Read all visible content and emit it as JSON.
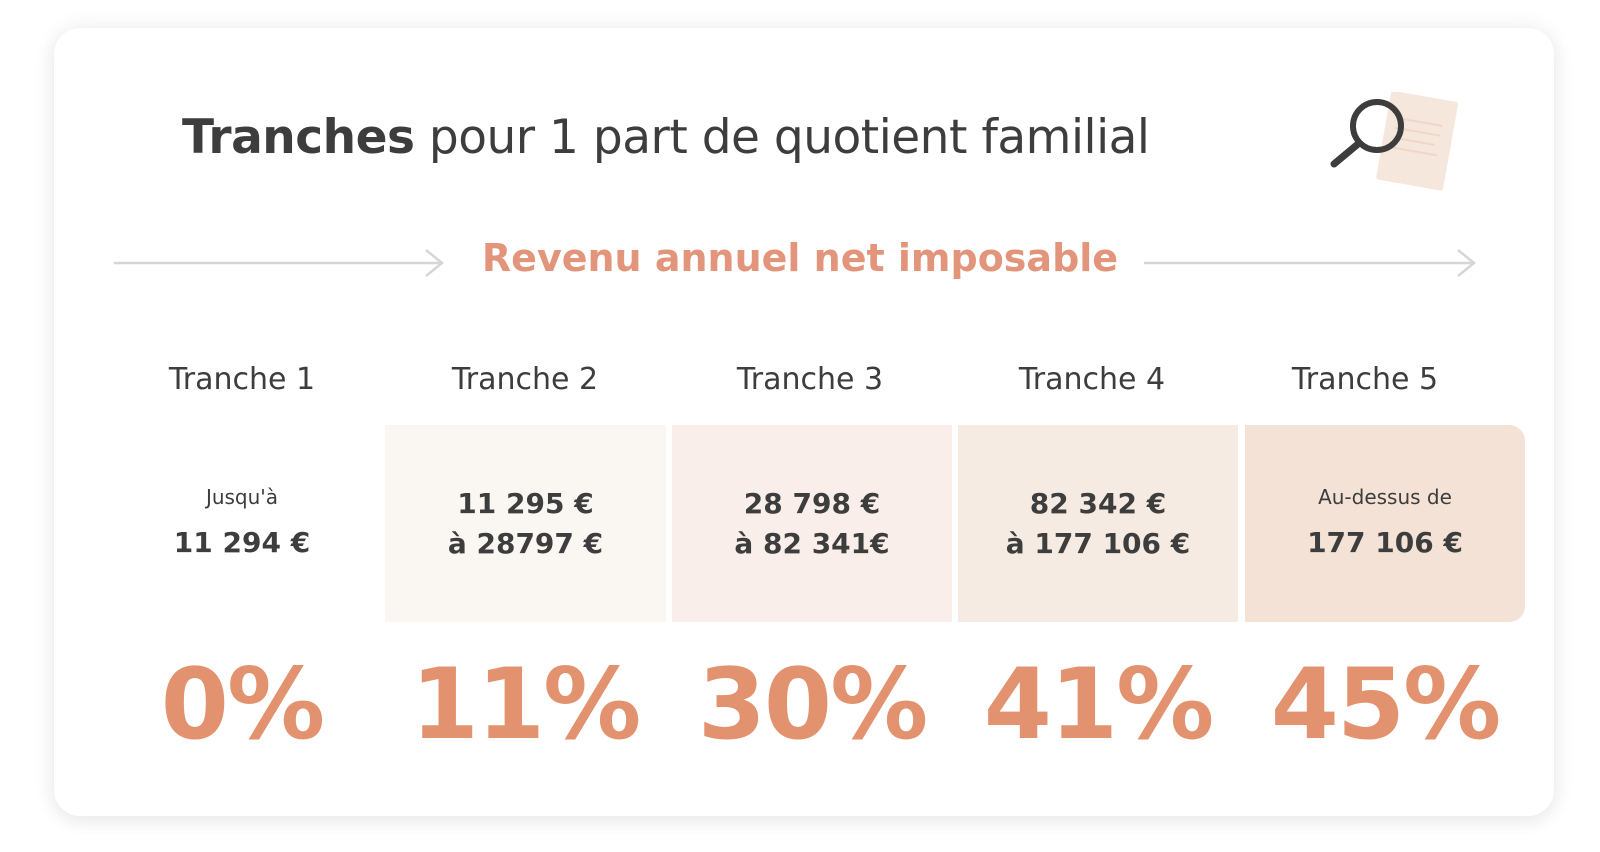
{
  "title": {
    "bold": "Tranches",
    "regular": "pour 1 part de quotient familial"
  },
  "axis": {
    "label": "Revenu annuel net imposable"
  },
  "colors": {
    "accent": "#e3926f",
    "text": "#3d3d3d",
    "box_2": "#faf6f2",
    "box_3": "#f9eee9",
    "box_4": "#f6ebe2",
    "box_5": "#f3e2d5"
  },
  "icons": {
    "search": "magnifier-over-document-icon"
  },
  "tranches": [
    {
      "header": "Tranche 1",
      "prefix": "Jusqu'à",
      "line1": "11 294 €",
      "line2": "",
      "rate": "0%"
    },
    {
      "header": "Tranche 2",
      "prefix": "",
      "line1": "11 295 €",
      "line2": "à 28797 €",
      "rate": "11%"
    },
    {
      "header": "Tranche 3",
      "prefix": "",
      "line1": "28 798 €",
      "line2": "à 82 341€",
      "rate": "30%"
    },
    {
      "header": "Tranche 4",
      "prefix": "",
      "line1": "82 342 €",
      "line2": "à 177 106 €",
      "rate": "41%"
    },
    {
      "header": "Tranche 5",
      "prefix": "Au-dessus de",
      "line1": "177 106 €",
      "line2": "",
      "rate": "45%"
    }
  ]
}
